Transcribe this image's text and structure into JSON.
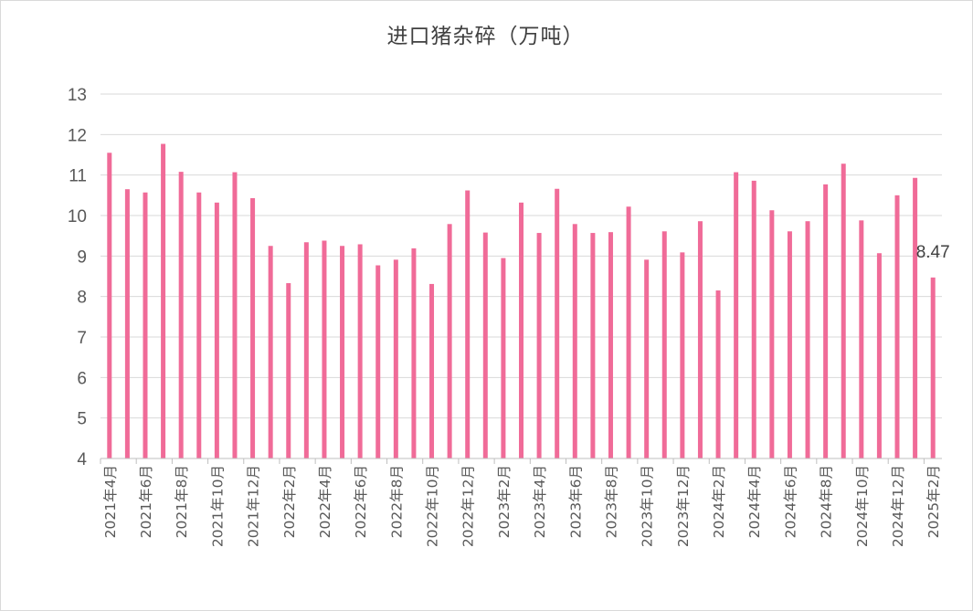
{
  "chart_data": {
    "type": "bar",
    "title": "进口猪杂碎（万吨）",
    "ylim": [
      4,
      13
    ],
    "yticks": [
      4,
      5,
      6,
      7,
      8,
      9,
      10,
      11,
      12,
      13
    ],
    "grid": true,
    "bar_color": "#f06b98",
    "categories": [
      "2021年4月",
      "2021年5月",
      "2021年6月",
      "2021年7月",
      "2021年8月",
      "2021年9月",
      "2021年10月",
      "2021年11月",
      "2021年12月",
      "2022年1月",
      "2022年2月",
      "2022年3月",
      "2022年4月",
      "2022年5月",
      "2022年6月",
      "2022年7月",
      "2022年8月",
      "2022年9月",
      "2022年10月",
      "2022年11月",
      "2022年12月",
      "2023年1月",
      "2023年2月",
      "2023年3月",
      "2023年4月",
      "2023年5月",
      "2023年6月",
      "2023年7月",
      "2023年8月",
      "2023年9月",
      "2023年10月",
      "2023年11月",
      "2023年12月",
      "2024年1月",
      "2024年2月",
      "2024年3月",
      "2024年4月",
      "2024年5月",
      "2024年6月",
      "2024年7月",
      "2024年8月",
      "2024年9月",
      "2024年10月",
      "2024年11月",
      "2024年12月",
      "2025年1月",
      "2025年2月"
    ],
    "values": [
      11.55,
      10.65,
      10.57,
      11.77,
      11.08,
      10.57,
      10.32,
      11.07,
      10.43,
      9.25,
      8.33,
      9.34,
      9.38,
      9.25,
      9.29,
      8.77,
      8.91,
      9.19,
      8.31,
      9.79,
      10.62,
      9.58,
      8.95,
      10.32,
      9.57,
      10.66,
      9.79,
      9.57,
      9.59,
      10.22,
      8.91,
      9.61,
      9.09,
      9.86,
      8.15,
      11.07,
      10.86,
      10.13,
      9.61,
      9.86,
      10.77,
      11.28,
      9.88,
      9.07,
      10.5,
      10.93,
      8.47
    ],
    "data_labels": [
      {
        "category": "2025年2月",
        "text": "8.47"
      }
    ]
  }
}
